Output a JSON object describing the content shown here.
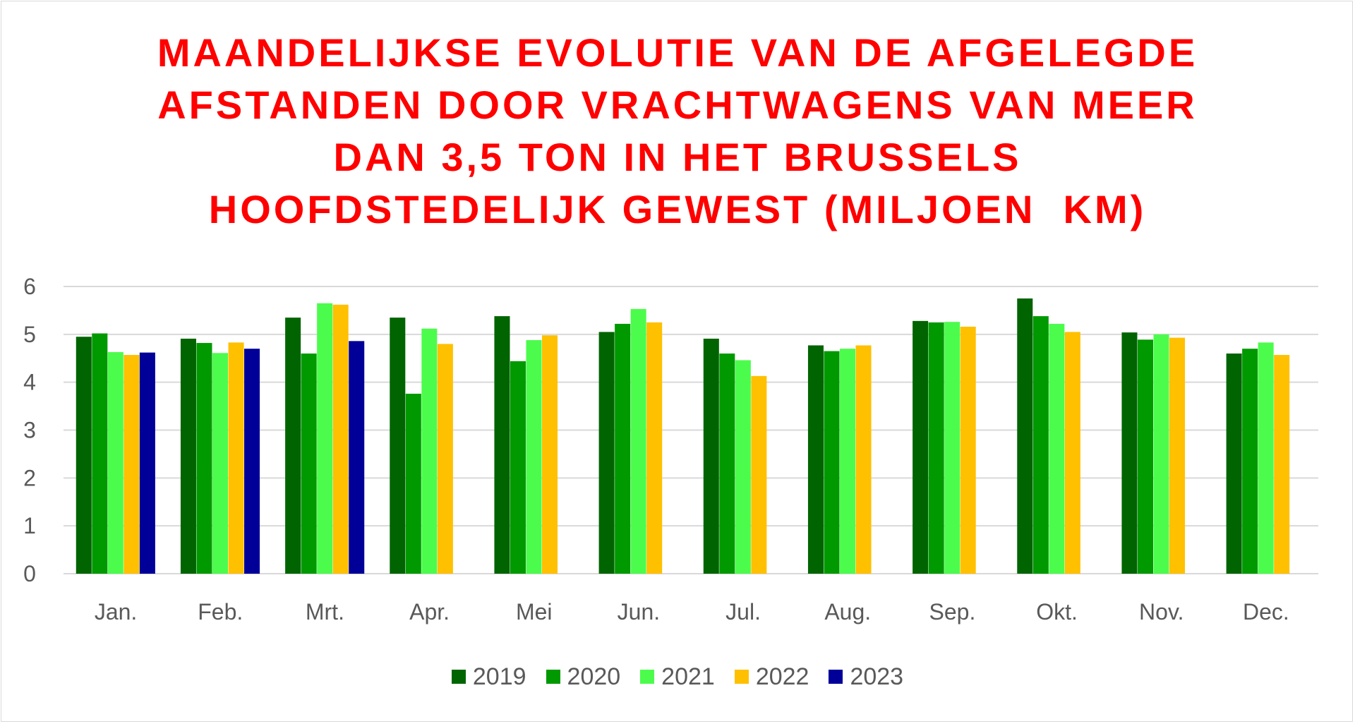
{
  "title_lines": [
    "MAANDELIJKSE EVOLUTIE VAN DE AFGELEGDE",
    "AFSTANDEN DOOR VRACHTWAGENS VAN MEER",
    "DAN 3,5 TON IN HET BRUSSELS",
    "HOOFDSTEDELIJK GEWEST (MILJOEN  KM)"
  ],
  "colors": {
    "title": "#ff0000",
    "grid": "#d9d9d9",
    "axis_text": "#595959"
  },
  "chart_data": {
    "type": "bar",
    "title": "MAANDELIJKSE EVOLUTIE VAN DE AFGELEGDE AFSTANDEN DOOR VRACHTWAGENS VAN MEER DAN 3,5 TON IN HET BRUSSELS HOOFDSTEDELIJK GEWEST (MILJOEN  KM)",
    "xlabel": "",
    "ylabel": "",
    "ylim": [
      0,
      6
    ],
    "yticks": [
      "0",
      "1",
      "2",
      "3",
      "4",
      "5",
      "6"
    ],
    "grid": true,
    "legend_position": "bottom",
    "categories": [
      "Jan.",
      "Feb.",
      "Mrt.",
      "Apr.",
      "Mei",
      "Jun.",
      "Jul.",
      "Aug.",
      "Sep.",
      "Okt.",
      "Nov.",
      "Dec."
    ],
    "series": [
      {
        "name": "2019",
        "color": "#006400",
        "values": [
          4.95,
          4.91,
          5.35,
          5.35,
          5.38,
          5.05,
          4.91,
          4.77,
          5.28,
          5.75,
          5.04,
          4.6
        ]
      },
      {
        "name": "2020",
        "color": "#009900",
        "values": [
          5.02,
          4.82,
          4.6,
          3.76,
          4.44,
          5.22,
          4.6,
          4.65,
          5.25,
          5.38,
          4.89,
          4.7
        ]
      },
      {
        "name": "2021",
        "color": "#4cfc4c",
        "values": [
          4.63,
          4.61,
          5.65,
          5.12,
          4.88,
          5.53,
          4.46,
          4.7,
          5.26,
          5.22,
          5.0,
          4.83
        ]
      },
      {
        "name": "2022",
        "color": "#ffc000",
        "values": [
          4.57,
          4.83,
          5.62,
          4.8,
          4.98,
          5.25,
          4.13,
          4.77,
          5.16,
          5.05,
          4.93,
          4.57
        ]
      },
      {
        "name": "2023",
        "color": "#000099",
        "values": [
          4.62,
          4.7,
          4.86,
          null,
          null,
          null,
          null,
          null,
          null,
          null,
          null,
          null
        ]
      }
    ]
  }
}
